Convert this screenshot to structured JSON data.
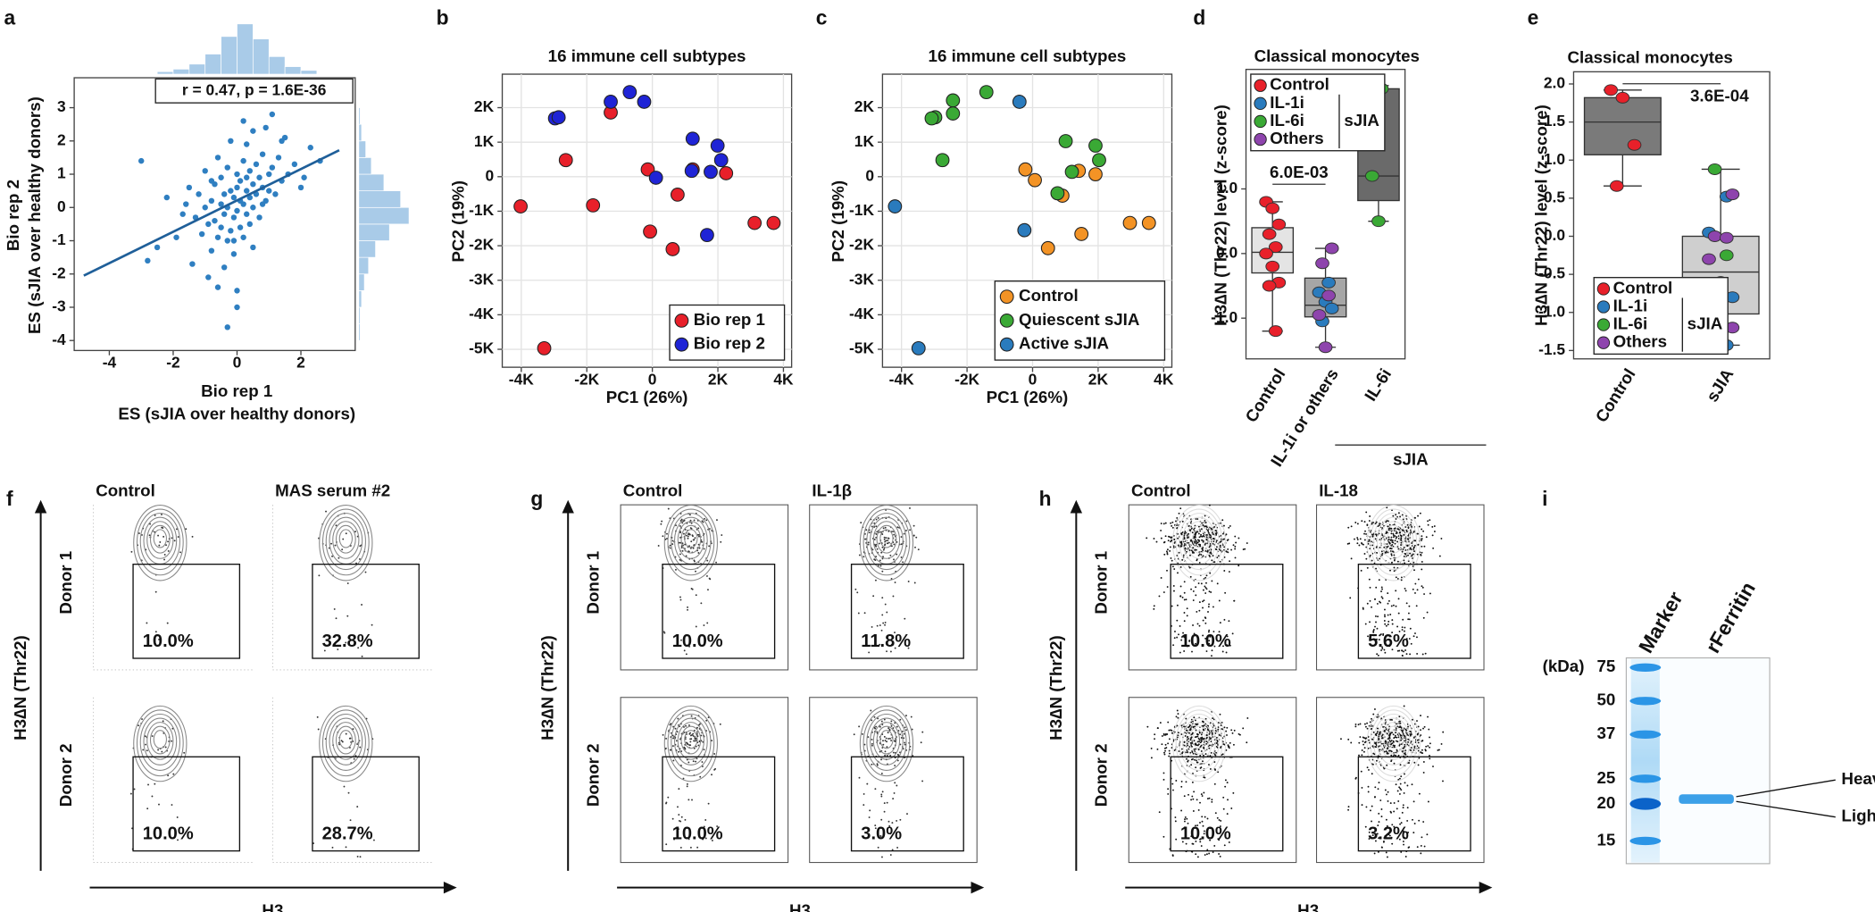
{
  "chart_data": [
    {
      "panel": "a",
      "type": "scatter",
      "annotation": "r = 0.47, p = 1.6E-36",
      "x_label": [
        "Bio rep 1",
        "ES (sJIA over healthy donors)"
      ],
      "y_label": [
        "Bio rep 2",
        "ES (sJIA over healthy donors)"
      ],
      "color": "#2f7fc1",
      "x": [
        -3.0,
        -2.5,
        -2.2,
        -1.9,
        -1.7,
        -1.5,
        -1.4,
        -1.3,
        -1.2,
        -1.1,
        -1.0,
        -1.0,
        -0.9,
        -0.9,
        -0.8,
        -0.8,
        -0.7,
        -0.7,
        -0.6,
        -0.6,
        -0.5,
        -0.5,
        -0.5,
        -0.4,
        -0.4,
        -0.4,
        -0.3,
        -0.3,
        -0.3,
        -0.2,
        -0.2,
        -0.2,
        -0.1,
        -0.1,
        -0.1,
        0.0,
        0.0,
        0.0,
        0.0,
        0.1,
        0.1,
        0.1,
        0.2,
        0.2,
        0.2,
        0.3,
        0.3,
        0.3,
        0.4,
        0.4,
        0.4,
        0.5,
        0.5,
        0.5,
        0.6,
        0.6,
        0.7,
        0.7,
        0.8,
        0.8,
        0.9,
        0.9,
        1.0,
        1.0,
        1.1,
        1.2,
        1.3,
        1.4,
        1.5,
        1.6,
        1.8,
        2.0,
        2.3,
        2.6,
        -0.3,
        0.2,
        -0.6,
        0.5,
        1.1,
        -1.6,
        0.0,
        -0.1,
        0.3,
        0.8,
        1.4,
        -0.8,
        -2.8,
        2.1
      ],
      "values": [
        1.4,
        -1.2,
        0.3,
        -0.9,
        -0.2,
        0.6,
        -1.7,
        -0.3,
        0.4,
        -0.8,
        0.0,
        1.1,
        -0.5,
        -2.1,
        0.2,
        -1.3,
        0.7,
        -0.4,
        1.5,
        -0.9,
        0.1,
        -0.6,
        0.9,
        -1.8,
        0.4,
        -0.2,
        1.2,
        0.0,
        -1.0,
        0.5,
        -0.7,
        2.0,
        0.3,
        -0.3,
        -1.4,
        0.6,
        -0.1,
        1.0,
        -2.5,
        0.2,
        0.8,
        -0.6,
        1.4,
        0.1,
        -0.9,
        0.5,
        -0.2,
        1.9,
        0.3,
        1.1,
        -0.5,
        0.7,
        0.0,
        2.3,
        0.4,
        1.3,
        0.9,
        -0.3,
        0.6,
        1.6,
        0.2,
        2.4,
        1.0,
        0.5,
        1.2,
        0.4,
        1.5,
        0.8,
        2.1,
        1.0,
        1.3,
        0.6,
        1.8,
        1.4,
        -3.6,
        2.6,
        -2.4,
        -1.2,
        2.8,
        0.1,
        -3.0,
        -1.0,
        0.9,
        0.1,
        2.0,
        0.8,
        -1.6,
        0.9
      ],
      "xlim": [
        -5.1,
        3.7
      ],
      "ylim": [
        -4.3,
        3.9
      ],
      "xticks": [
        -4,
        -2,
        0,
        2
      ],
      "yticks": [
        -4,
        -3,
        -2,
        -1,
        0,
        1,
        2,
        3
      ],
      "grid": false,
      "fit": {
        "x": [
          -4.8,
          3.2
        ],
        "values": [
          -2.05,
          1.72
        ]
      },
      "x_hist": {
        "bins": [
          -2.5,
          -2.0,
          -1.5,
          -1.0,
          -0.5,
          0.0,
          0.5,
          1.0,
          1.5,
          2.0,
          2.5
        ],
        "counts": [
          2,
          4,
          8,
          16,
          30,
          40,
          28,
          14,
          6,
          3
        ]
      },
      "y_hist": {
        "bins": [
          -4.0,
          -3.5,
          -3.0,
          -2.5,
          -2.0,
          -1.5,
          -1.0,
          -0.5,
          0.0,
          0.5,
          1.0,
          1.5,
          2.0,
          2.5,
          3.0
        ],
        "counts": [
          1,
          1,
          2,
          4,
          7,
          12,
          22,
          36,
          30,
          18,
          9,
          5,
          2,
          1
        ]
      }
    },
    {
      "panel": "b",
      "type": "scatter",
      "title": "16 immune cell subtypes",
      "x_label": "PC1 (26%)",
      "y_label": "PC2 (19%)",
      "xlim": [
        -4580,
        4250
      ],
      "ylim": [
        -5520,
        2970
      ],
      "xticks": [
        {
          "value": -4000,
          "label": "-4K"
        },
        {
          "value": -2000,
          "label": "-2K"
        },
        0,
        {
          "value": 2000,
          "label": "2K"
        },
        {
          "value": 4000,
          "label": "4K"
        }
      ],
      "yticks": [
        {
          "value": -5000,
          "label": "-5K"
        },
        {
          "value": -4000,
          "label": "-4K"
        },
        {
          "value": -3000,
          "label": "-3K"
        },
        {
          "value": -2000,
          "label": "-2K"
        },
        {
          "value": -1000,
          "label": "-1K"
        },
        0,
        {
          "value": 1000,
          "label": "1K"
        },
        {
          "value": 2000,
          "label": "2K"
        }
      ],
      "grid": true,
      "legend": "lower right",
      "series": [
        {
          "name": "Bio rep 1",
          "color": "#e8202a",
          "x": [
            -1270,
            -2640,
            -4020,
            -1810,
            -140,
            770,
            -70,
            620,
            1230,
            2250,
            3120,
            3700,
            -3300
          ],
          "values": [
            1860,
            480,
            -860,
            -830,
            210,
            -520,
            -1590,
            -2100,
            210,
            100,
            -1340,
            -1340,
            -4970
          ]
        },
        {
          "name": "Bio rep 2",
          "color": "#1f24d6",
          "x": [
            -2970,
            -2860,
            -1270,
            -690,
            -250,
            110,
            1230,
            1200,
            1990,
            2100,
            1780,
            1670
          ],
          "values": [
            1690,
            1720,
            2170,
            2450,
            2170,
            -30,
            1100,
            170,
            900,
            480,
            140,
            -1690
          ]
        }
      ]
    },
    {
      "panel": "c",
      "type": "scatter",
      "title": "16 immune cell subtypes",
      "x_label": "PC1 (26%)",
      "y_label": "PC2 (19%)",
      "xlim": [
        -4580,
        4250
      ],
      "ylim": [
        -5520,
        2970
      ],
      "xticks": [
        {
          "value": -4000,
          "label": "-4K"
        },
        {
          "value": -2000,
          "label": "-2K"
        },
        0,
        {
          "value": 2000,
          "label": "2K"
        },
        {
          "value": 4000,
          "label": "4K"
        }
      ],
      "yticks": [
        {
          "value": -5000,
          "label": "-5K"
        },
        {
          "value": -4000,
          "label": "-4K"
        },
        {
          "value": -3000,
          "label": "-3K"
        },
        {
          "value": -2000,
          "label": "-2K"
        },
        {
          "value": -1000,
          "label": "-1K"
        },
        0,
        {
          "value": 1000,
          "label": "1K"
        },
        {
          "value": 2000,
          "label": "2K"
        }
      ],
      "grid": true,
      "legend": "lower right",
      "series": [
        {
          "name": "Control",
          "color": "#f39325",
          "x": [
            -220,
            70,
            910,
            470,
            1410,
            1920,
            1490,
            2970,
            3550
          ],
          "values": [
            210,
            -100,
            -550,
            -2070,
            170,
            70,
            -1660,
            -1340,
            -1340
          ]
        },
        {
          "name": "Quiescent sJIA",
          "color": "#3aa935",
          "x": [
            -2970,
            -3080,
            -2430,
            -2430,
            -1410,
            -2750,
            1010,
            1920,
            2030,
            1200,
            760
          ],
          "values": [
            1720,
            1690,
            2210,
            1830,
            2450,
            480,
            1030,
            900,
            480,
            140,
            -480
          ]
        },
        {
          "name": "Active sJIA",
          "color": "#2a7bbd",
          "x": [
            -400,
            -4200,
            -250,
            -3480
          ],
          "values": [
            2170,
            -860,
            -1550,
            -4970
          ]
        }
      ]
    },
    {
      "panel": "d",
      "type": "box",
      "title": "Classical monocytes",
      "y_label": "H3∆N (Thr22) level (z-score)",
      "categories": [
        "Control",
        "IL-1i or others",
        "IL-6i"
      ],
      "group_label": "sJIA",
      "significance": "6.0E-03",
      "ylim": [
        -1.63,
        2.85
      ],
      "yticks": [
        {
          "value": -1,
          "label": "-1.0"
        },
        {
          "value": 0,
          "label": "0.0"
        },
        {
          "value": 1,
          "label": "1.0"
        }
      ],
      "box_colors": [
        "#e4e4e4",
        "#a6a6a6",
        "#6a6a6a"
      ],
      "boxes": [
        {
          "low": -1.2,
          "q1": -0.3,
          "median": 0.02,
          "q3": 0.4,
          "high": 0.8
        },
        {
          "low": -1.45,
          "q1": -0.98,
          "median": -0.8,
          "q3": -0.38,
          "high": 0.08
        },
        {
          "low": 0.5,
          "q1": 0.82,
          "median": 1.2,
          "q3": 2.55,
          "high": 2.6
        }
      ],
      "legend": "upper left",
      "legend_group": "sJIA",
      "series": [
        {
          "name": "Control",
          "color": "#e8202a",
          "x": [
            "Control",
            "Control",
            "Control",
            "Control",
            "Control",
            "Control",
            "Control",
            "Control",
            "Control",
            "Control"
          ],
          "values": [
            0.8,
            0.7,
            0.45,
            0.3,
            0.1,
            0.0,
            -0.2,
            -0.45,
            -0.5,
            -1.2
          ]
        },
        {
          "name": "IL-1i",
          "color": "#2a7bbd",
          "x": [
            "IL-1i or others",
            "IL-1i or others",
            "IL-1i or others",
            "IL-1i or others",
            "IL-1i or others"
          ],
          "values": [
            -0.45,
            -0.6,
            -0.75,
            -0.85,
            -1.05
          ]
        },
        {
          "name": "IL-6i",
          "color": "#3aa935",
          "x": [
            "IL-6i",
            "IL-6i",
            "IL-6i",
            "IL-6i"
          ],
          "values": [
            2.6,
            2.55,
            1.2,
            0.5
          ]
        },
        {
          "name": "Others",
          "color": "#8e44ad",
          "x": [
            "IL-1i or others",
            "IL-1i or others",
            "IL-1i or others",
            "IL-1i or others",
            "IL-1i or others"
          ],
          "values": [
            0.08,
            -0.15,
            -0.65,
            -0.95,
            -1.45
          ]
        }
      ]
    },
    {
      "panel": "e",
      "type": "box",
      "title": "Classical monocytes",
      "y_label": "H3∆N (Thr22) level (z-score)",
      "categories": [
        "Control",
        "sJIA"
      ],
      "significance": "3.6E-04",
      "ylim": [
        -1.61,
        2.16
      ],
      "yticks": [
        {
          "value": -1.5,
          "label": "-1.5"
        },
        {
          "value": -1,
          "label": "-1.0"
        },
        {
          "value": -0.5,
          "label": "-0.5"
        },
        {
          "value": 0,
          "label": "0.0"
        },
        {
          "value": 0.5,
          "label": "0.5"
        },
        {
          "value": 1,
          "label": "1.0"
        },
        {
          "value": 1.5,
          "label": "1.5"
        },
        {
          "value": 2,
          "label": "2.0"
        }
      ],
      "box_colors": [
        "#7a7a7a",
        "#cfcfcf"
      ],
      "boxes": [
        {
          "low": 0.66,
          "q1": 1.07,
          "median": 1.5,
          "q3": 1.82,
          "high": 1.92
        },
        {
          "low": -1.43,
          "q1": -1.02,
          "median": -0.47,
          "q3": 0,
          "high": 0.88
        }
      ],
      "legend": "lower left",
      "legend_group": "sJIA",
      "series": [
        {
          "name": "Control",
          "color": "#e8202a",
          "x": [
            "Control",
            "Control",
            "Control",
            "Control"
          ],
          "values": [
            1.92,
            1.82,
            1.2,
            0.66
          ]
        },
        {
          "name": "IL-1i",
          "color": "#2a7bbd",
          "x": [
            "sJIA",
            "sJIA",
            "sJIA",
            "sJIA",
            "sJIA",
            "sJIA"
          ],
          "values": [
            0.52,
            0.05,
            -0.6,
            -0.8,
            -1.0,
            -1.43
          ]
        },
        {
          "name": "IL-6i",
          "color": "#3aa935",
          "x": [
            "sJIA",
            "sJIA"
          ],
          "values": [
            0.88,
            -0.25
          ]
        },
        {
          "name": "Others",
          "color": "#8e44ad",
          "x": [
            "sJIA",
            "sJIA",
            "sJIA",
            "sJIA",
            "sJIA",
            "sJIA"
          ],
          "values": [
            0.55,
            0.0,
            -0.02,
            -0.3,
            -1.2,
            -1.2
          ]
        }
      ]
    }
  ],
  "flow": [
    {
      "panel": "f",
      "columns": [
        "Control",
        "MAS serum #2"
      ],
      "rows": [
        "Donor 1",
        "Donor 2"
      ],
      "gates": [
        [
          "10.0%",
          "32.8%"
        ],
        [
          "10.0%",
          "28.7%"
        ]
      ],
      "y_label": "H3∆N (Thr22)",
      "x_label": "H3"
    },
    {
      "panel": "g",
      "columns": [
        "Control",
        "IL-1β"
      ],
      "rows": [
        "Donor 1",
        "Donor 2"
      ],
      "gates": [
        [
          "10.0%",
          "11.8%"
        ],
        [
          "10.0%",
          "3.0%"
        ]
      ],
      "y_label": "H3∆N (Thr22)",
      "x_label": "H3"
    },
    {
      "panel": "h",
      "columns": [
        "Control",
        "IL-18"
      ],
      "rows": [
        "Donor 1",
        "Donor 2"
      ],
      "gates": [
        [
          "10.0%",
          "5.6%"
        ],
        [
          "10.0%",
          "3.2%"
        ]
      ],
      "y_label": "H3∆N (Thr22)",
      "x_label": "H3"
    }
  ],
  "gel": {
    "panel": "i",
    "lanes": [
      "Marker",
      "rFerritin"
    ],
    "unit": "(kDa)",
    "ladder": [
      75,
      50,
      37,
      25,
      20,
      15
    ],
    "bands": [
      "Heavy chain",
      "Light chain"
    ]
  }
}
